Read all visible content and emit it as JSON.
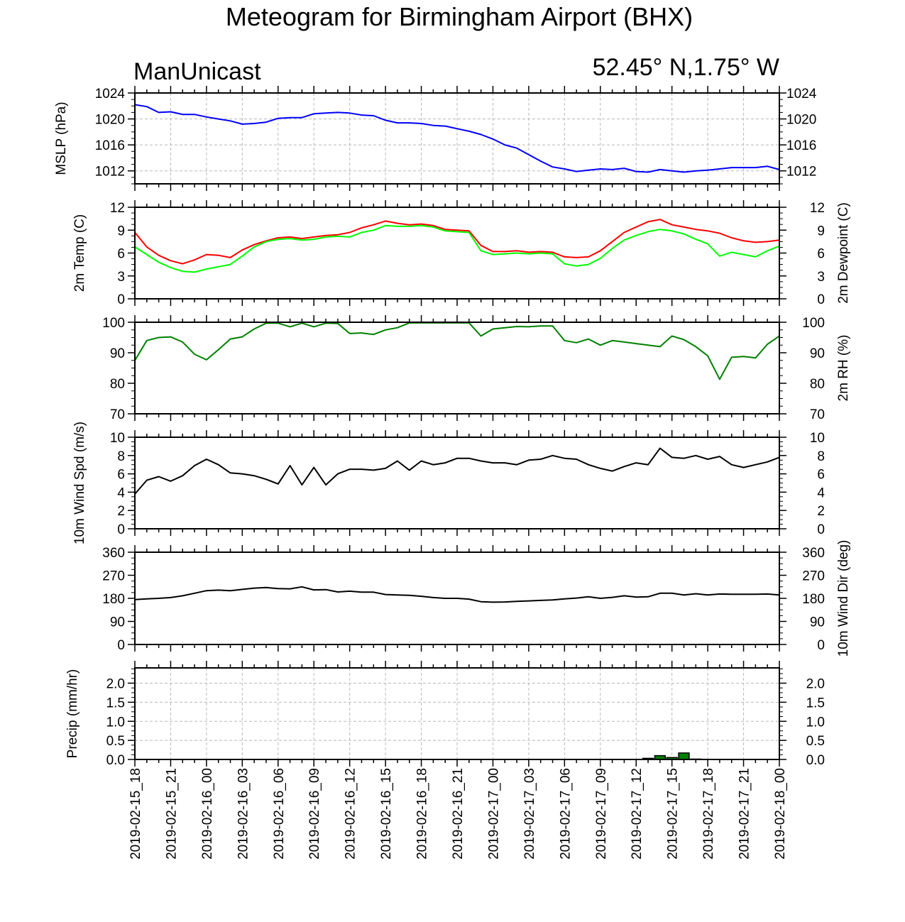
{
  "title": "Meteogram for Birmingham Airport (BHX)",
  "subtitle_left": "ManUnicast",
  "subtitle_right": "52.45° N,1.75° W",
  "x_tick_labels": [
    "2019-02-15_18",
    "2019-02-15_21",
    "2019-02-16_00",
    "2019-02-16_03",
    "2019-02-16_06",
    "2019-02-16_09",
    "2019-02-16_12",
    "2019-02-16_15",
    "2019-02-16_18",
    "2019-02-16_21",
    "2019-02-17_00",
    "2019-02-17_03",
    "2019-02-17_06",
    "2019-02-17_09",
    "2019-02-17_12",
    "2019-02-17_15",
    "2019-02-17_18",
    "2019-02-17_21",
    "2019-02-18_00"
  ],
  "chart_data": [
    {
      "type": "line",
      "ylabel": "MSLP (hPa)",
      "ylim": [
        1010,
        1024
      ],
      "yticks": [
        1012,
        1016,
        1020,
        1024
      ],
      "ytick_labels": [
        "1012",
        "1016",
        "1020",
        "1024"
      ],
      "right_ticks": true,
      "grid": true,
      "x_hours": [
        0,
        1,
        2,
        3,
        4,
        5,
        6,
        7,
        8,
        9,
        10,
        11,
        12,
        13,
        14,
        15,
        16,
        17,
        18,
        19,
        20,
        21,
        22,
        23,
        24,
        25,
        26,
        27,
        28,
        29,
        30,
        31,
        32,
        33,
        34,
        35,
        36,
        37,
        38,
        39,
        40,
        41,
        42,
        43,
        44,
        45,
        46,
        47,
        48,
        49,
        50,
        51,
        52,
        53,
        54
      ],
      "series": [
        {
          "color": "#0000ff",
          "values": [
            1022.2,
            1021.9,
            1021.0,
            1021.1,
            1020.7,
            1020.7,
            1020.3,
            1020.0,
            1019.7,
            1019.2,
            1019.3,
            1019.5,
            1020.1,
            1020.2,
            1020.2,
            1020.8,
            1020.9,
            1021.0,
            1020.9,
            1020.6,
            1020.5,
            1019.8,
            1019.4,
            1019.4,
            1019.3,
            1019.0,
            1018.9,
            1018.5,
            1018.1,
            1017.6,
            1016.9,
            1016.0,
            1015.5,
            1014.5,
            1013.5,
            1012.6,
            1012.3,
            1011.9,
            1012.1,
            1012.3,
            1012.2,
            1012.4,
            1011.9,
            1011.8,
            1012.2,
            1012.0,
            1011.8,
            1012.0,
            1012.1,
            1012.3,
            1012.5,
            1012.5,
            1012.5,
            1012.7,
            1012.2
          ]
        }
      ]
    },
    {
      "type": "line",
      "ylabel": "2m Temp (C)",
      "ylabel_right": "2m Dewpoint (C)",
      "ylim": [
        0,
        12
      ],
      "yticks": [
        0,
        3,
        6,
        9,
        12
      ],
      "ytick_labels": [
        "0",
        "3",
        "6",
        "9",
        "12"
      ],
      "right_labels": true,
      "grid": false,
      "x_hours": [
        0,
        1,
        2,
        3,
        4,
        5,
        6,
        7,
        8,
        9,
        10,
        11,
        12,
        13,
        14,
        15,
        16,
        17,
        18,
        19,
        20,
        21,
        22,
        23,
        24,
        25,
        26,
        27,
        28,
        29,
        30,
        31,
        32,
        33,
        34,
        35,
        36,
        37,
        38,
        39,
        40,
        41,
        42,
        43,
        44,
        45,
        46,
        47,
        48,
        49,
        50,
        51,
        52,
        53,
        54
      ],
      "series": [
        {
          "color": "#ff0000",
          "values": [
            8.7,
            6.8,
            5.7,
            5.0,
            4.6,
            5.1,
            5.8,
            5.7,
            5.4,
            6.4,
            7.1,
            7.6,
            8.0,
            8.1,
            7.9,
            8.1,
            8.3,
            8.4,
            8.7,
            9.3,
            9.7,
            10.2,
            9.9,
            9.7,
            9.8,
            9.6,
            9.1,
            9.0,
            8.9,
            7.0,
            6.2,
            6.2,
            6.3,
            6.1,
            6.2,
            6.1,
            5.5,
            5.4,
            5.5,
            6.3,
            7.5,
            8.7,
            9.4,
            10.1,
            10.4,
            9.7,
            9.4,
            9.1,
            8.9,
            8.6,
            8.0,
            7.6,
            7.4,
            7.5,
            7.7
          ]
        },
        {
          "color": "#00ff00",
          "values": [
            6.8,
            5.8,
            4.8,
            4.1,
            3.6,
            3.5,
            3.9,
            4.2,
            4.5,
            5.6,
            6.8,
            7.5,
            7.8,
            7.9,
            7.7,
            7.8,
            8.1,
            8.2,
            8.1,
            8.7,
            9.0,
            9.6,
            9.5,
            9.5,
            9.6,
            9.4,
            8.9,
            8.8,
            8.7,
            6.3,
            5.8,
            5.9,
            6.0,
            5.9,
            6.0,
            5.9,
            4.6,
            4.3,
            4.5,
            5.3,
            6.6,
            7.7,
            8.3,
            8.8,
            9.1,
            8.9,
            8.5,
            7.8,
            7.2,
            5.6,
            6.1,
            5.8,
            5.5,
            6.3,
            6.9
          ]
        }
      ]
    },
    {
      "type": "line",
      "ylabel_right": "2m RH (%)",
      "ylim": [
        70,
        100
      ],
      "yticks": [
        70,
        80,
        90,
        100
      ],
      "ytick_labels": [
        "70",
        "80",
        "90",
        "100"
      ],
      "right_labels": true,
      "grid": false,
      "x_hours": [
        0,
        1,
        2,
        3,
        4,
        5,
        6,
        7,
        8,
        9,
        10,
        11,
        12,
        13,
        14,
        15,
        16,
        17,
        18,
        19,
        20,
        21,
        22,
        23,
        24,
        25,
        26,
        27,
        28,
        29,
        30,
        31,
        32,
        33,
        34,
        35,
        36,
        37,
        38,
        39,
        40,
        41,
        42,
        43,
        44,
        45,
        46,
        47,
        48,
        49,
        50,
        51,
        52,
        53,
        54
      ],
      "series": [
        {
          "color": "#008000",
          "values": [
            87.5,
            94.0,
            95.0,
            95.2,
            93.5,
            89.5,
            87.7,
            91.0,
            94.5,
            95.2,
            97.8,
            99.7,
            99.7,
            98.5,
            99.7,
            98.5,
            99.7,
            99.6,
            96.3,
            96.5,
            96.0,
            97.5,
            98.2,
            99.8,
            99.8,
            99.8,
            99.8,
            99.8,
            99.8,
            95.5,
            97.8,
            98.2,
            98.6,
            98.5,
            98.8,
            98.8,
            94.0,
            93.3,
            94.5,
            92.5,
            94.0,
            93.5,
            93.0,
            92.5,
            92.0,
            95.5,
            94.3,
            92.0,
            89.0,
            81.3,
            88.5,
            88.8,
            88.3,
            92.8,
            95.5
          ]
        }
      ]
    },
    {
      "type": "line",
      "ylabel": "10m Wind Spd (m/s)",
      "ylim": [
        0,
        10
      ],
      "yticks": [
        0,
        2,
        4,
        6,
        8,
        10
      ],
      "ytick_labels": [
        "0",
        "2",
        "4",
        "6",
        "8",
        "10"
      ],
      "right_labels": true,
      "grid": false,
      "x_hours": [
        0,
        1,
        2,
        3,
        4,
        5,
        6,
        7,
        8,
        9,
        10,
        11,
        12,
        13,
        14,
        15,
        16,
        17,
        18,
        19,
        20,
        21,
        22,
        23,
        24,
        25,
        26,
        27,
        28,
        29,
        30,
        31,
        32,
        33,
        34,
        35,
        36,
        37,
        38,
        39,
        40,
        41,
        42,
        43,
        44,
        45,
        46,
        47,
        48,
        49,
        50,
        51,
        52,
        53,
        54
      ],
      "series": [
        {
          "color": "#000000",
          "values": [
            3.8,
            5.3,
            5.7,
            5.2,
            5.8,
            6.9,
            7.6,
            7.0,
            6.1,
            6.0,
            5.8,
            5.4,
            4.9,
            6.9,
            4.8,
            6.7,
            4.8,
            6.0,
            6.5,
            6.5,
            6.4,
            6.6,
            7.4,
            6.4,
            7.4,
            7.0,
            7.2,
            7.7,
            7.7,
            7.4,
            7.2,
            7.2,
            7.0,
            7.5,
            7.6,
            8.0,
            7.7,
            7.6,
            7.0,
            6.6,
            6.3,
            6.8,
            7.2,
            7.0,
            8.8,
            7.8,
            7.7,
            8.0,
            7.6,
            7.9,
            7.0,
            6.7,
            7.0,
            7.3,
            7.8
          ]
        }
      ]
    },
    {
      "type": "line",
      "ylabel_right": "10m Wind Dir (deg)",
      "ylim": [
        0,
        360
      ],
      "yticks": [
        0,
        90,
        180,
        270,
        360
      ],
      "ytick_labels": [
        "0",
        "90",
        "180",
        "270",
        "360"
      ],
      "right_labels": true,
      "grid": false,
      "x_hours": [
        0,
        1,
        2,
        3,
        4,
        5,
        6,
        7,
        8,
        9,
        10,
        11,
        12,
        13,
        14,
        15,
        16,
        17,
        18,
        19,
        20,
        21,
        22,
        23,
        24,
        25,
        26,
        27,
        28,
        29,
        30,
        31,
        32,
        33,
        34,
        35,
        36,
        37,
        38,
        39,
        40,
        41,
        42,
        43,
        44,
        45,
        46,
        47,
        48,
        49,
        50,
        51,
        52,
        53,
        54
      ],
      "series": [
        {
          "color": "#000000",
          "values": [
            175,
            178,
            180,
            183,
            190,
            200,
            210,
            212,
            210,
            215,
            220,
            222,
            218,
            217,
            225,
            213,
            214,
            205,
            208,
            204,
            204,
            195,
            193,
            192,
            188,
            183,
            180,
            180,
            177,
            167,
            165,
            166,
            168,
            170,
            172,
            174,
            178,
            181,
            186,
            180,
            184,
            190,
            185,
            186,
            200,
            200,
            193,
            198,
            193,
            197,
            196,
            196,
            196,
            197,
            193
          ]
        }
      ]
    },
    {
      "type": "bar",
      "ylabel": "Precip (mm/hr)",
      "ylim": [
        0,
        2.4
      ],
      "yticks": [
        0.0,
        0.5,
        1.0,
        1.5,
        2.0
      ],
      "ytick_labels": [
        "0.0",
        "0.5",
        "1.0",
        "1.5",
        "2.0"
      ],
      "right_labels": true,
      "grid": true,
      "x_hours": [
        43,
        44,
        45,
        46,
        47
      ],
      "series": [
        {
          "color": "#008000",
          "values": [
            0.03,
            0.1,
            0.05,
            0.17,
            0.01
          ]
        }
      ]
    }
  ]
}
